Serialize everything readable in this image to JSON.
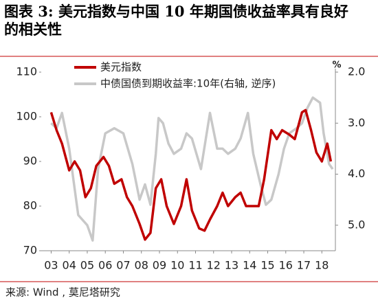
{
  "chart_data": {
    "type": "line",
    "title": "图表 3:  美元指数与中国 10 年期国债收益率具有良好的相关性",
    "source": "来源:  Wind ,  莫尼塔研究",
    "y2_unit": "%",
    "xlim": [
      2.45,
      18.75
    ],
    "xticks": [
      {
        "value": 3,
        "label": "03"
      },
      {
        "value": 4,
        "label": "04"
      },
      {
        "value": 5,
        "label": "05"
      },
      {
        "value": 6,
        "label": "06"
      },
      {
        "value": 7,
        "label": "07"
      },
      {
        "value": 8,
        "label": "08"
      },
      {
        "value": 9,
        "label": "09"
      },
      10,
      11,
      12,
      13,
      14,
      15,
      16,
      17,
      18
    ],
    "ylim": [
      70,
      110
    ],
    "yticks": [
      70,
      80,
      90,
      100,
      110
    ],
    "y2lim": [
      2,
      5.5
    ],
    "y2_reverse": true,
    "y2ticks": [
      {
        "value": 2,
        "label": "2.0"
      },
      {
        "value": 3,
        "label": "3.0"
      },
      {
        "value": 4,
        "label": "4.0"
      },
      {
        "value": 5,
        "label": "5.0"
      }
    ],
    "series": [
      {
        "name": "美元指数",
        "color": "#c00000",
        "x": [
          3.0,
          3.3,
          3.6,
          4.0,
          4.3,
          4.6,
          4.9,
          5.2,
          5.5,
          5.9,
          6.2,
          6.5,
          6.9,
          7.2,
          7.5,
          7.9,
          8.2,
          8.5,
          8.8,
          9.1,
          9.4,
          9.8,
          10.2,
          10.5,
          10.8,
          11.2,
          11.5,
          11.8,
          12.2,
          12.5,
          12.8,
          13.2,
          13.5,
          13.8,
          14.2,
          14.5,
          14.8,
          15.2,
          15.5,
          15.8,
          16.2,
          16.5,
          16.9,
          17.1,
          17.4,
          17.7,
          18.0,
          18.3,
          18.5
        ],
        "values": [
          101,
          97,
          94,
          88,
          90,
          88,
          82,
          84,
          89,
          91,
          89,
          85,
          86,
          82,
          80,
          76,
          72.5,
          74,
          84,
          86,
          80,
          76,
          80,
          86,
          79,
          75,
          74.5,
          77,
          80,
          83,
          80,
          82,
          83,
          80,
          80,
          80,
          86,
          97,
          95,
          97,
          96,
          95,
          101,
          101.5,
          97,
          92,
          90,
          94,
          90
        ]
      },
      {
        "name": "中债国债到期收益率:10年(右轴, 逆序)",
        "color": "#c8c8c8",
        "axis": "y2",
        "x": [
          3.0,
          3.3,
          3.6,
          4.0,
          4.5,
          5.0,
          5.3,
          5.6,
          6.0,
          6.5,
          7.0,
          7.5,
          7.9,
          8.2,
          8.5,
          8.8,
          8.95,
          9.2,
          9.5,
          9.8,
          10.2,
          10.5,
          10.8,
          11.3,
          11.8,
          12.2,
          12.5,
          12.8,
          13.2,
          13.5,
          13.9,
          14.2,
          14.6,
          14.9,
          15.2,
          15.6,
          15.9,
          16.2,
          16.6,
          16.9,
          17.2,
          17.5,
          17.9,
          18.1,
          18.4,
          18.6
        ],
        "values": [
          3.0,
          3.1,
          2.8,
          3.5,
          4.8,
          5.0,
          5.3,
          3.9,
          3.2,
          3.1,
          3.2,
          3.8,
          4.5,
          4.2,
          4.6,
          3.6,
          2.9,
          3.0,
          3.4,
          3.6,
          3.5,
          3.2,
          3.3,
          3.9,
          2.8,
          3.5,
          3.5,
          3.6,
          3.5,
          3.3,
          2.8,
          3.6,
          4.2,
          4.6,
          4.5,
          4.0,
          3.5,
          3.2,
          3.1,
          3.0,
          2.7,
          2.5,
          2.6,
          3.2,
          3.8,
          3.9
        ]
      }
    ]
  }
}
